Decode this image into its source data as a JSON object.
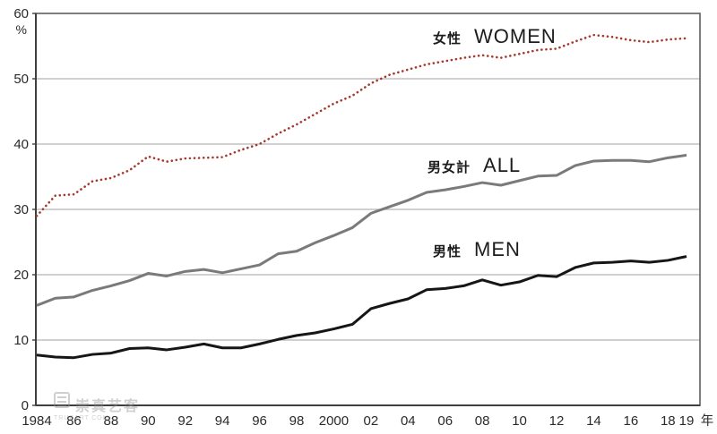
{
  "chart_data": {
    "type": "line",
    "title": "",
    "ylabel": "%",
    "x_axis_unit": "年",
    "ylim": [
      0,
      60
    ],
    "y_ticks": [
      0,
      10,
      20,
      30,
      40,
      50,
      60
    ],
    "grid": true,
    "legend_position": "inline-annotations",
    "x": [
      1984,
      1985,
      1986,
      1987,
      1988,
      1989,
      1990,
      1991,
      1992,
      1993,
      1994,
      1995,
      1996,
      1997,
      1998,
      1999,
      2000,
      2001,
      2002,
      2003,
      2004,
      2005,
      2006,
      2007,
      2008,
      2009,
      2010,
      2011,
      2012,
      2013,
      2014,
      2015,
      2016,
      2017,
      2018,
      2019
    ],
    "x_ticks": [
      {
        "year": 1984,
        "label": "1984"
      },
      {
        "year": 1986,
        "label": "86"
      },
      {
        "year": 1988,
        "label": "88"
      },
      {
        "year": 1990,
        "label": "90"
      },
      {
        "year": 1992,
        "label": "92"
      },
      {
        "year": 1994,
        "label": "94"
      },
      {
        "year": 1996,
        "label": "96"
      },
      {
        "year": 1998,
        "label": "98"
      },
      {
        "year": 2000,
        "label": "2000"
      },
      {
        "year": 2002,
        "label": "02"
      },
      {
        "year": 2004,
        "label": "04"
      },
      {
        "year": 2006,
        "label": "06"
      },
      {
        "year": 2008,
        "label": "08"
      },
      {
        "year": 2010,
        "label": "10"
      },
      {
        "year": 2012,
        "label": "12"
      },
      {
        "year": 2014,
        "label": "14"
      },
      {
        "year": 2016,
        "label": "16"
      },
      {
        "year": 2018,
        "label": "18"
      },
      {
        "year": 2019,
        "label": "19"
      }
    ],
    "series": [
      {
        "key": "women",
        "name_ja": "女性",
        "name_en": "WOMEN",
        "style": "dotted",
        "color": "#a6392c",
        "values": [
          29.0,
          32.1,
          32.3,
          34.3,
          34.8,
          36.0,
          38.1,
          37.3,
          37.8,
          37.9,
          38.0,
          39.1,
          40.0,
          41.6,
          43.0,
          44.6,
          46.2,
          47.4,
          49.3,
          50.6,
          51.4,
          52.2,
          52.7,
          53.2,
          53.6,
          53.2,
          53.8,
          54.4,
          54.6,
          55.7,
          56.7,
          56.4,
          55.9,
          55.6,
          56.0,
          56.2
        ]
      },
      {
        "key": "all",
        "name_ja": "男女計",
        "name_en": "ALL",
        "style": "solid",
        "color": "#7a7a7a",
        "values": [
          15.3,
          16.4,
          16.6,
          17.6,
          18.3,
          19.1,
          20.2,
          19.8,
          20.5,
          20.8,
          20.3,
          20.9,
          21.5,
          23.2,
          23.6,
          24.9,
          26.0,
          27.2,
          29.4,
          30.4,
          31.4,
          32.6,
          33.0,
          33.5,
          34.1,
          33.7,
          34.4,
          35.1,
          35.2,
          36.7,
          37.4,
          37.5,
          37.5,
          37.3,
          37.9,
          38.3
        ]
      },
      {
        "key": "men",
        "name_ja": "男性",
        "name_en": "MEN",
        "style": "solid",
        "color": "#161616",
        "values": [
          7.7,
          7.4,
          7.3,
          7.8,
          8.0,
          8.7,
          8.8,
          8.5,
          8.9,
          9.4,
          8.8,
          8.8,
          9.4,
          10.1,
          10.7,
          11.1,
          11.7,
          12.4,
          14.8,
          15.6,
          16.3,
          17.7,
          17.9,
          18.3,
          19.2,
          18.4,
          18.9,
          19.9,
          19.7,
          21.1,
          21.8,
          21.9,
          22.1,
          21.9,
          22.2,
          22.8
        ]
      }
    ],
    "colors": {
      "grid": "#b4b4b4",
      "plot_border": "#5e5e5e",
      "axis": "#3f3f3f",
      "tick_label": "#2a2a2a"
    }
  },
  "watermark": {
    "cjk": "崇真艺客",
    "latin": "TRUEART.COM"
  }
}
